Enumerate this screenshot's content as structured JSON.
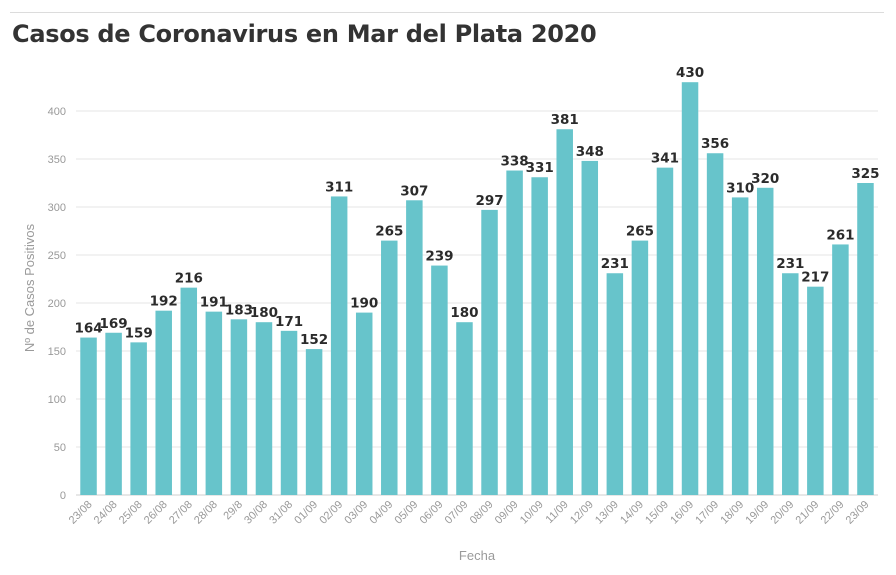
{
  "title": "Casos de Coronavirus en Mar del Plata 2020",
  "colors": {
    "bar": "#67c4cb",
    "grid": "#e6e6e6",
    "text": "#333333"
  },
  "chart_data": {
    "type": "bar",
    "title": "Casos de Coronavirus en Mar del Plata 2020",
    "xlabel": "Fecha",
    "ylabel": "Nº de Casos Positivos",
    "ylim": [
      0,
      450
    ],
    "yticks": [
      0,
      50,
      100,
      150,
      200,
      250,
      300,
      350,
      400
    ],
    "grid": true,
    "categories": [
      "23/08",
      "24/08",
      "25/08",
      "26/08",
      "27/08",
      "28/08",
      "29/8",
      "30/08",
      "31/08",
      "01/09",
      "02/09",
      "03/09",
      "04/09",
      "05/09",
      "06/09",
      "07/09",
      "08/09",
      "09/09",
      "10/09",
      "11/09",
      "12/09",
      "13/09",
      "14/09",
      "15/09",
      "16/09",
      "17/09",
      "18/09",
      "19/09",
      "20/09",
      "21/09",
      "22/09",
      "23/09"
    ],
    "values": [
      164,
      169,
      159,
      192,
      216,
      191,
      183,
      180,
      171,
      152,
      311,
      190,
      265,
      307,
      239,
      180,
      297,
      338,
      331,
      381,
      348,
      231,
      265,
      341,
      430,
      356,
      310,
      320,
      231,
      217,
      261,
      325
    ]
  }
}
